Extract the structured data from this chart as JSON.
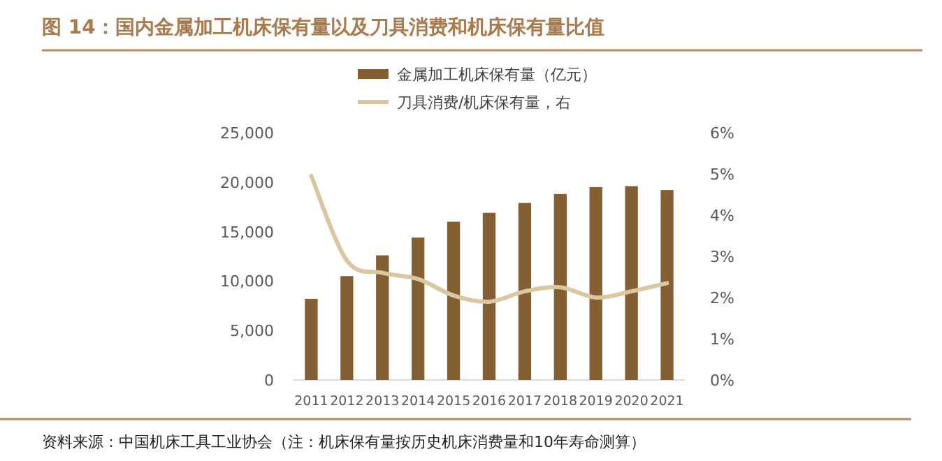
{
  "chart_data": {
    "type": "bar",
    "title": "图 14：国内金属加工机床保有量以及刀具消费和机床保有量比值",
    "categories": [
      "2011",
      "2012",
      "2013",
      "2014",
      "2015",
      "2016",
      "2017",
      "2018",
      "2019",
      "2020",
      "2021"
    ],
    "series": [
      {
        "name": "金属加工机床保有量（亿元）",
        "color": "#835f33",
        "values": [
          8200,
          10500,
          12600,
          14400,
          16000,
          16900,
          17900,
          18800,
          19500,
          19600,
          19200
        ]
      },
      {
        "name": "刀具消费/机床保有量，右",
        "type": "line",
        "axis": "y2",
        "color": "#d9c7a0",
        "values": [
          4.95,
          2.9,
          2.6,
          2.45,
          2.05,
          1.9,
          2.15,
          2.25,
          2.0,
          2.15,
          2.35
        ]
      }
    ],
    "ylim": [
      0,
      25000
    ],
    "yticks": [
      {
        "value": 0,
        "label": "0"
      },
      {
        "value": 5000,
        "label": "5,000"
      },
      {
        "value": 10000,
        "label": "10,000"
      },
      {
        "value": 15000,
        "label": "15,000"
      },
      {
        "value": 20000,
        "label": "20,000"
      },
      {
        "value": 25000,
        "label": "25,000"
      }
    ],
    "y2lim": [
      0,
      6
    ],
    "y2ticks": [
      {
        "value": 0,
        "label": "0%"
      },
      {
        "value": 1,
        "label": "1%"
      },
      {
        "value": 2,
        "label": "2%"
      },
      {
        "value": 3,
        "label": "3%"
      },
      {
        "value": 4,
        "label": "4%"
      },
      {
        "value": 5,
        "label": "5%"
      },
      {
        "value": 6,
        "label": "6%"
      }
    ],
    "legend": "top",
    "grid": false,
    "annotations": [
      "资料来源：中国机床工具工业协会（注：机床保有量按历史机床消费量和10年寿命测算）"
    ]
  }
}
